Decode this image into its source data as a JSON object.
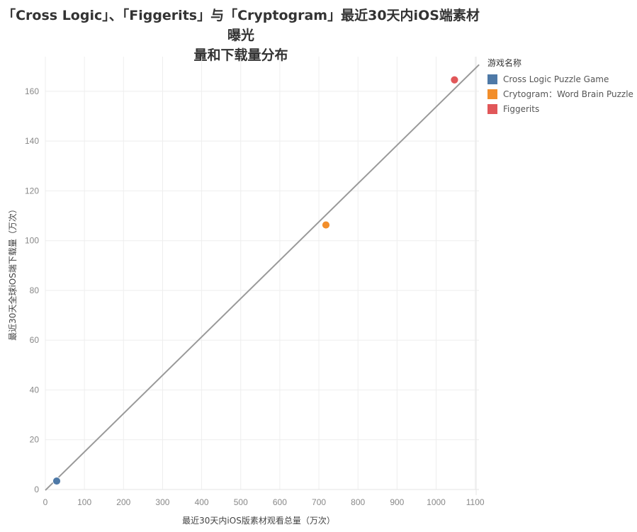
{
  "title_line1": "「Cross Logic」、「Figgerits」与「Cryptogram」最近30天内iOS端素材曝光",
  "title_line2": "量和下载量分布",
  "legend": {
    "title": "游戏名称",
    "items": [
      {
        "label": "Cross Logic Puzzle Game",
        "color": "#4e79a7"
      },
      {
        "label": "Crytogram：Word Brain Puzzle",
        "color": "#f28e2b"
      },
      {
        "label": "Figgerits",
        "color": "#e15759"
      }
    ]
  },
  "chart_data": {
    "type": "scatter",
    "title": "「Cross Logic」、「Figgerits」与「Cryptogram」最近30天内iOS端素材曝光量和下载量分布",
    "xlabel": "最近30天内iOS版素材观看总量（万次）",
    "ylabel": "最近30天全球iOS端下载量（万次）",
    "xlim": [
      0,
      1100
    ],
    "ylim": [
      0,
      170
    ],
    "xticks": [
      0,
      100,
      200,
      300,
      400,
      500,
      600,
      700,
      800,
      900,
      1000,
      1100
    ],
    "yticks": [
      0,
      20,
      40,
      60,
      80,
      100,
      120,
      140,
      160
    ],
    "grid": true,
    "legend_position": "right",
    "series": [
      {
        "name": "Cross Logic Puzzle Game",
        "color": "#4e79a7",
        "points": [
          {
            "x": 29,
            "y": 3.4
          }
        ]
      },
      {
        "name": "Crytogram：Word Brain Puzzle",
        "color": "#f28e2b",
        "points": [
          {
            "x": 718,
            "y": 106.3
          }
        ]
      },
      {
        "name": "Figgerits",
        "color": "#e15759",
        "points": [
          {
            "x": 1047,
            "y": 164.6
          }
        ]
      }
    ],
    "trend_line": {
      "x0": 0,
      "y0": -0.3,
      "x1": 1110,
      "y1": 170.7,
      "color": "#999999"
    }
  }
}
